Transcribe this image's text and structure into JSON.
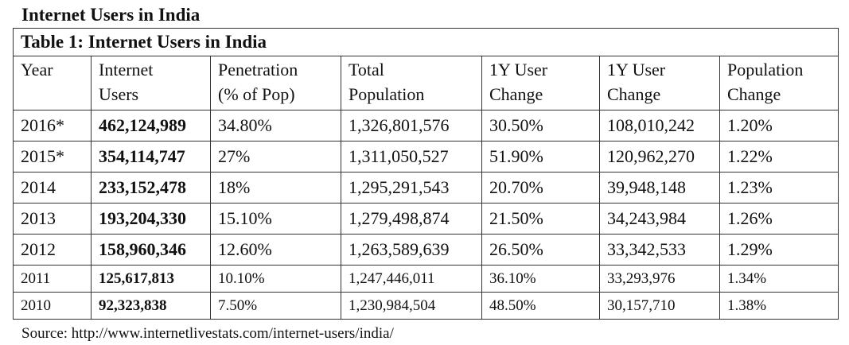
{
  "document": {
    "title": "Internet Users in India",
    "source": "Source: http://www.internetlivestats.com/internet-users/india/"
  },
  "table": {
    "caption": "Table 1:  Internet Users in India",
    "headers": [
      [
        "Year",
        ""
      ],
      [
        "Internet",
        "Users"
      ],
      [
        "Penetration",
        "(% of Pop)"
      ],
      [
        "Total",
        "Population"
      ],
      [
        "1Y User",
        "Change"
      ],
      [
        "1Y User",
        "Change"
      ],
      [
        "Population",
        "Change"
      ]
    ],
    "rows": [
      [
        "2016*",
        "462,124,989",
        "34.80%",
        "1,326,801,576",
        "30.50%",
        "108,010,242",
        "1.20%"
      ],
      [
        "2015*",
        "354,114,747",
        "27%",
        "1,311,050,527",
        "51.90%",
        "120,962,270",
        "1.22%"
      ],
      [
        "2014",
        "233,152,478",
        "18%",
        "1,295,291,543",
        "20.70%",
        "39,948,148",
        "1.23%"
      ],
      [
        "2013",
        "193,204,330",
        "15.10%",
        "1,279,498,874",
        "21.50%",
        "34,243,984",
        "1.26%"
      ],
      [
        "2012",
        "158,960,346",
        "12.60%",
        "1,263,589,639",
        "26.50%",
        "33,342,533",
        "1.29%"
      ],
      [
        "2011",
        "125,617,813",
        "10.10%",
        "1,247,446,011",
        "36.10%",
        "33,293,976",
        "1.34%"
      ],
      [
        "2010",
        "92,323,838",
        "7.50%",
        "1,230,984,504",
        "48.50%",
        "30,157,710",
        "1.38%"
      ]
    ]
  }
}
